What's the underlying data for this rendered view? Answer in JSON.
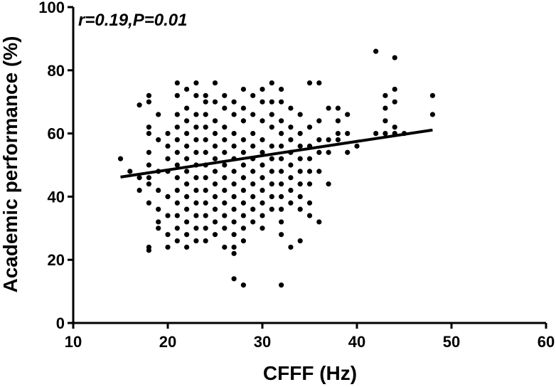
{
  "chart_data": {
    "type": "scatter",
    "title": "",
    "xlabel": "CFFF (Hz)",
    "ylabel": "Academic performance (%)",
    "xlim": [
      10,
      60
    ],
    "ylim": [
      0,
      100
    ],
    "xticks": [
      10,
      20,
      30,
      40,
      50,
      60
    ],
    "yticks": [
      0,
      20,
      40,
      60,
      80,
      100
    ],
    "annotation": "r=0.19,P=0.01",
    "grid": false,
    "legend": "none",
    "point_color": "#000000",
    "line_color": "#000000",
    "regression_line": {
      "x": [
        15,
        48
      ],
      "y": [
        46.2,
        61.1
      ]
    },
    "points": [
      [
        15,
        52
      ],
      [
        16,
        48
      ],
      [
        17,
        46
      ],
      [
        17,
        42
      ],
      [
        17,
        69
      ],
      [
        18,
        72
      ],
      [
        18,
        70
      ],
      [
        18,
        62
      ],
      [
        18,
        60
      ],
      [
        18,
        54
      ],
      [
        18,
        50
      ],
      [
        18,
        46
      ],
      [
        18,
        44
      ],
      [
        18,
        38
      ],
      [
        18,
        24
      ],
      [
        18,
        23
      ],
      [
        19,
        66
      ],
      [
        19,
        58
      ],
      [
        19,
        48
      ],
      [
        19,
        42
      ],
      [
        19,
        36
      ],
      [
        19,
        32
      ],
      [
        19,
        30
      ],
      [
        20,
        60
      ],
      [
        20,
        56
      ],
      [
        20,
        52
      ],
      [
        20,
        48
      ],
      [
        20,
        40
      ],
      [
        20,
        34
      ],
      [
        20,
        28
      ],
      [
        20,
        24
      ],
      [
        21,
        76
      ],
      [
        21,
        72
      ],
      [
        21,
        66
      ],
      [
        21,
        62
      ],
      [
        21,
        58
      ],
      [
        21,
        54
      ],
      [
        21,
        50
      ],
      [
        21,
        46
      ],
      [
        21,
        42
      ],
      [
        21,
        38
      ],
      [
        21,
        34
      ],
      [
        21,
        30
      ],
      [
        21,
        26
      ],
      [
        22,
        74
      ],
      [
        22,
        68
      ],
      [
        22,
        64
      ],
      [
        22,
        60
      ],
      [
        22,
        56
      ],
      [
        22,
        52
      ],
      [
        22,
        48
      ],
      [
        22,
        44
      ],
      [
        22,
        40
      ],
      [
        22,
        36
      ],
      [
        22,
        32
      ],
      [
        22,
        28
      ],
      [
        22,
        24
      ],
      [
        23,
        76
      ],
      [
        23,
        72
      ],
      [
        23,
        66
      ],
      [
        23,
        62
      ],
      [
        23,
        58
      ],
      [
        23,
        54
      ],
      [
        23,
        50
      ],
      [
        23,
        46
      ],
      [
        23,
        42
      ],
      [
        23,
        38
      ],
      [
        23,
        34
      ],
      [
        23,
        30
      ],
      [
        23,
        26
      ],
      [
        24,
        72
      ],
      [
        24,
        70
      ],
      [
        24,
        66
      ],
      [
        24,
        62
      ],
      [
        24,
        58
      ],
      [
        24,
        54
      ],
      [
        24,
        50
      ],
      [
        24,
        46
      ],
      [
        24,
        42
      ],
      [
        24,
        38
      ],
      [
        24,
        34
      ],
      [
        24,
        30
      ],
      [
        24,
        26
      ],
      [
        25,
        76
      ],
      [
        25,
        70
      ],
      [
        25,
        64
      ],
      [
        25,
        60
      ],
      [
        25,
        56
      ],
      [
        25,
        52
      ],
      [
        25,
        48
      ],
      [
        25,
        44
      ],
      [
        25,
        40
      ],
      [
        25,
        36
      ],
      [
        25,
        32
      ],
      [
        25,
        28
      ],
      [
        26,
        72
      ],
      [
        26,
        68
      ],
      [
        26,
        62
      ],
      [
        26,
        58
      ],
      [
        26,
        54
      ],
      [
        26,
        50
      ],
      [
        26,
        46
      ],
      [
        26,
        42
      ],
      [
        26,
        38
      ],
      [
        26,
        34
      ],
      [
        26,
        30
      ],
      [
        26,
        24
      ],
      [
        27,
        70
      ],
      [
        27,
        66
      ],
      [
        27,
        60
      ],
      [
        27,
        56
      ],
      [
        27,
        52
      ],
      [
        27,
        48
      ],
      [
        27,
        44
      ],
      [
        27,
        40
      ],
      [
        27,
        36
      ],
      [
        27,
        32
      ],
      [
        27,
        28
      ],
      [
        27,
        24
      ],
      [
        27,
        22
      ],
      [
        27,
        14
      ],
      [
        28,
        74
      ],
      [
        28,
        68
      ],
      [
        28,
        64
      ],
      [
        28,
        58
      ],
      [
        28,
        54
      ],
      [
        28,
        50
      ],
      [
        28,
        46
      ],
      [
        28,
        42
      ],
      [
        28,
        38
      ],
      [
        28,
        34
      ],
      [
        28,
        30
      ],
      [
        28,
        26
      ],
      [
        28,
        12
      ],
      [
        29,
        72
      ],
      [
        29,
        66
      ],
      [
        29,
        60
      ],
      [
        29,
        56
      ],
      [
        29,
        52
      ],
      [
        29,
        48
      ],
      [
        29,
        44
      ],
      [
        29,
        40
      ],
      [
        29,
        36
      ],
      [
        29,
        32
      ],
      [
        30,
        74
      ],
      [
        30,
        70
      ],
      [
        30,
        64
      ],
      [
        30,
        58
      ],
      [
        30,
        54
      ],
      [
        30,
        50
      ],
      [
        30,
        46
      ],
      [
        30,
        42
      ],
      [
        30,
        38
      ],
      [
        30,
        34
      ],
      [
        30,
        30
      ],
      [
        31,
        76
      ],
      [
        31,
        70
      ],
      [
        31,
        66
      ],
      [
        31,
        62
      ],
      [
        31,
        56
      ],
      [
        31,
        52
      ],
      [
        31,
        48
      ],
      [
        31,
        44
      ],
      [
        31,
        40
      ],
      [
        31,
        36
      ],
      [
        32,
        74
      ],
      [
        32,
        70
      ],
      [
        32,
        64
      ],
      [
        32,
        60
      ],
      [
        32,
        56
      ],
      [
        32,
        52
      ],
      [
        32,
        48
      ],
      [
        32,
        44
      ],
      [
        32,
        40
      ],
      [
        32,
        36
      ],
      [
        32,
        32
      ],
      [
        32,
        28
      ],
      [
        32,
        12
      ],
      [
        33,
        68
      ],
      [
        33,
        62
      ],
      [
        33,
        58
      ],
      [
        33,
        54
      ],
      [
        33,
        50
      ],
      [
        33,
        46
      ],
      [
        33,
        42
      ],
      [
        33,
        38
      ],
      [
        33,
        24
      ],
      [
        34,
        66
      ],
      [
        34,
        60
      ],
      [
        34,
        56
      ],
      [
        34,
        52
      ],
      [
        34,
        48
      ],
      [
        34,
        44
      ],
      [
        34,
        40
      ],
      [
        34,
        36
      ],
      [
        34,
        26
      ],
      [
        35,
        76
      ],
      [
        35,
        62
      ],
      [
        35,
        56
      ],
      [
        35,
        52
      ],
      [
        35,
        48
      ],
      [
        35,
        44
      ],
      [
        35,
        38
      ],
      [
        35,
        34
      ],
      [
        36,
        76
      ],
      [
        36,
        64
      ],
      [
        36,
        58
      ],
      [
        36,
        54
      ],
      [
        36,
        48
      ],
      [
        36,
        32
      ],
      [
        37,
        68
      ],
      [
        37,
        58
      ],
      [
        37,
        54
      ],
      [
        37,
        44
      ],
      [
        38,
        68
      ],
      [
        38,
        64
      ],
      [
        38,
        60
      ],
      [
        38,
        58
      ],
      [
        39,
        66
      ],
      [
        39,
        60
      ],
      [
        39,
        54
      ],
      [
        40,
        56
      ],
      [
        42,
        86
      ],
      [
        42,
        60
      ],
      [
        43,
        72
      ],
      [
        43,
        68
      ],
      [
        43,
        64
      ],
      [
        43,
        60
      ],
      [
        44,
        84
      ],
      [
        44,
        74
      ],
      [
        44,
        70
      ],
      [
        44,
        62
      ],
      [
        44,
        60
      ],
      [
        45,
        60
      ],
      [
        48,
        72
      ],
      [
        48,
        66
      ]
    ]
  }
}
